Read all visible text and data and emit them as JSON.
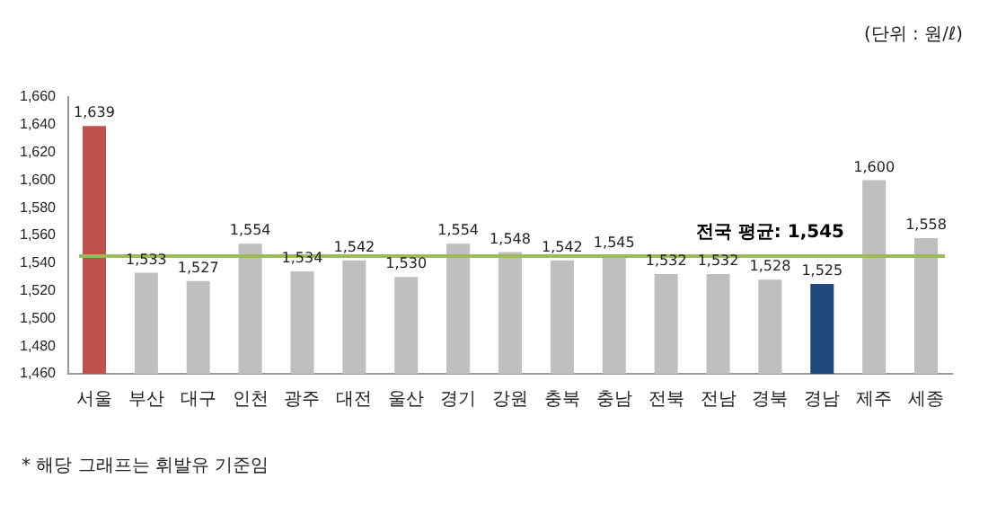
{
  "chart_data": {
    "type": "bar",
    "categories": [
      "서울",
      "부산",
      "대구",
      "인천",
      "광주",
      "대전",
      "울산",
      "경기",
      "강원",
      "충북",
      "충남",
      "전북",
      "전남",
      "경북",
      "경남",
      "제주",
      "세종"
    ],
    "values": [
      1639,
      1533,
      1527,
      1554,
      1534,
      1542,
      1530,
      1554,
      1548,
      1542,
      1545,
      1532,
      1532,
      1528,
      1525,
      1600,
      1558
    ],
    "colors": [
      "#c0504d",
      "#bfbfbf",
      "#bfbfbf",
      "#bfbfbf",
      "#bfbfbf",
      "#bfbfbf",
      "#bfbfbf",
      "#bfbfbf",
      "#bfbfbf",
      "#bfbfbf",
      "#bfbfbf",
      "#bfbfbf",
      "#bfbfbf",
      "#bfbfbf",
      "#1f497d",
      "#bfbfbf",
      "#bfbfbf"
    ],
    "value_labels": [
      "1,639",
      "1,533",
      "1,527",
      "1,554",
      "1,534",
      "1,542",
      "1,530",
      "1,554",
      "1,548",
      "1,542",
      "1,545",
      "1,532",
      "1,532",
      "1,528",
      "1,525",
      "1,600",
      "1,558"
    ],
    "ylim": [
      1460,
      1660
    ],
    "yticks": [
      {
        "value": 1460,
        "label": "1,460"
      },
      {
        "value": 1480,
        "label": "1,480"
      },
      {
        "value": 1500,
        "label": "1,500"
      },
      {
        "value": 1520,
        "label": "1,520"
      },
      {
        "value": 1540,
        "label": "1,540"
      },
      {
        "value": 1560,
        "label": "1,560"
      },
      {
        "value": 1580,
        "label": "1,580"
      },
      {
        "value": 1600,
        "label": "1,600"
      },
      {
        "value": 1620,
        "label": "1,620"
      },
      {
        "value": 1640,
        "label": "1,640"
      },
      {
        "value": 1660,
        "label": "1,660"
      }
    ],
    "ref_lines": [
      {
        "axis": "y",
        "value": 1545,
        "label": "전국 평균: 1,545",
        "color": "#9bbb59"
      }
    ],
    "annotations": [
      "(단위 : 원/ℓ)",
      "* 해당 그래프는 휘발유 기준임"
    ],
    "grid": false,
    "legend": false
  }
}
